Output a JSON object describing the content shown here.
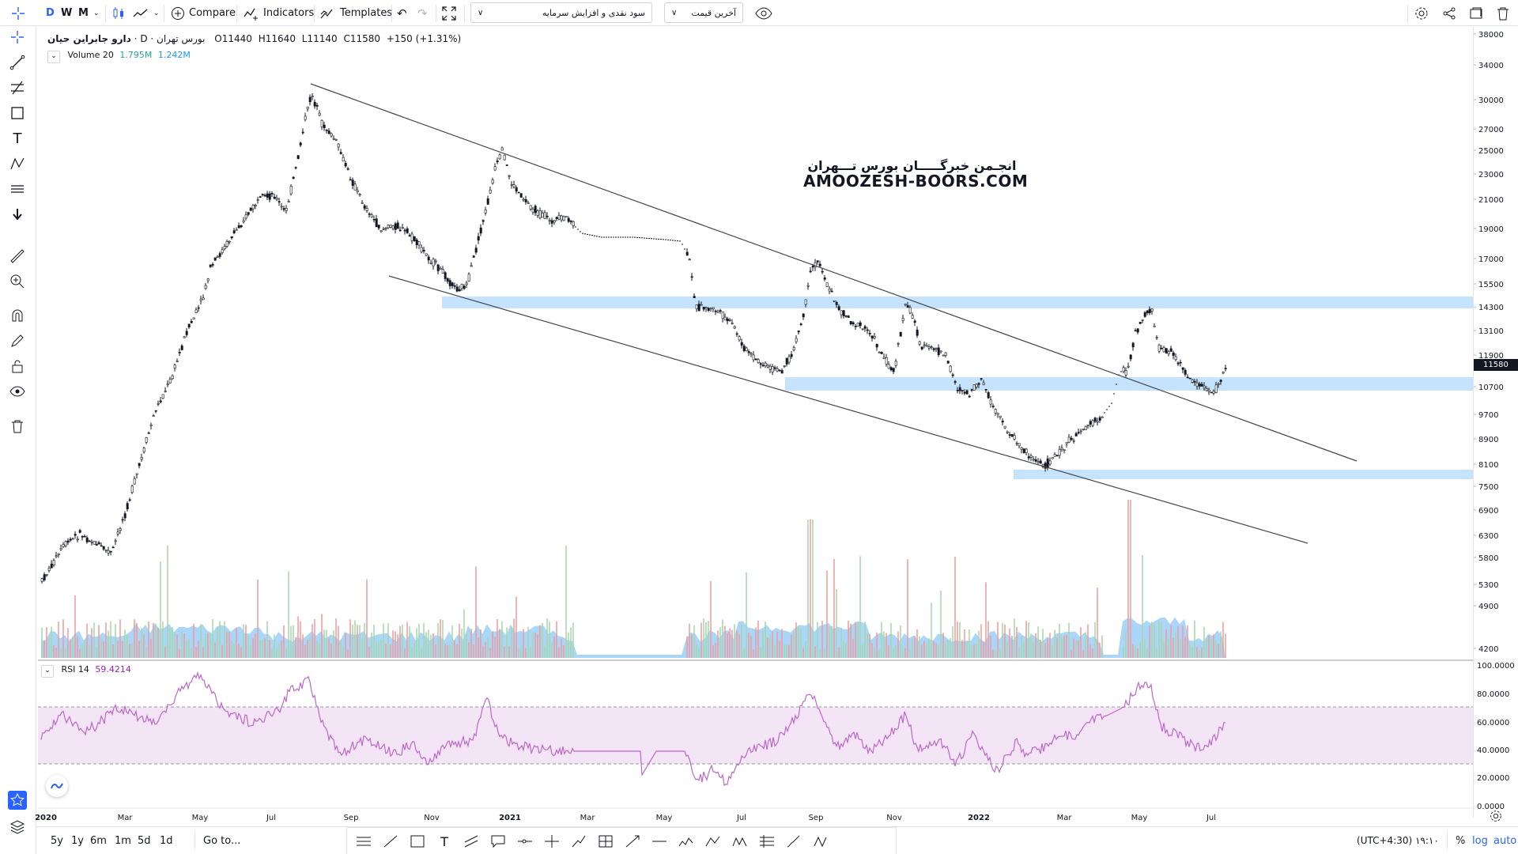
{
  "topbar": {
    "intervals": [
      "D",
      "W",
      "M"
    ],
    "compare_label": "Compare",
    "indicators_label": "Indicators",
    "templates_label": "Templates",
    "dropdown_adjustment": "سود نقدی و افزایش سرمایه",
    "dropdown_price": "آخرین قیمت"
  },
  "legend": {
    "symbol": "دارو جابراین حیان",
    "interval": "D",
    "exchange": "بورس تهران",
    "open": "O11440",
    "high": "H11640",
    "low": "L11140",
    "close": "C11580",
    "change": "+150 (+1.31%)",
    "volume_label": "Volume 20",
    "volume_val1": "1.795M",
    "volume_val2": "1.242M",
    "rsi_label": "RSI 14",
    "rsi_val": "59.4214"
  },
  "watermark": {
    "line1": "انجـمن خبرگـــــان بورس تـــهران",
    "line2": "AMOOZESH-BOORS.COM"
  },
  "price_axis": {
    "labels": [
      "38000",
      "34000",
      "30000",
      "27000",
      "25000",
      "23000",
      "21000",
      "19000",
      "17000",
      "15500",
      "14300",
      "13100",
      "11900",
      "10700",
      "9700",
      "8900",
      "8100",
      "7500",
      "6900",
      "6300",
      "5800",
      "5300",
      "4900",
      "4200"
    ],
    "current_price": "11580"
  },
  "rsi_axis": {
    "labels": [
      "100.0000",
      "80.0000",
      "60.0000",
      "40.0000",
      "20.0000",
      "0.0000"
    ]
  },
  "time_axis": {
    "labels": [
      "2020",
      "Mar",
      "May",
      "Jul",
      "Sep",
      "Nov",
      "2021",
      "Mar",
      "May",
      "Jul",
      "Sep",
      "Nov",
      "2022",
      "Mar",
      "May",
      "Jul"
    ]
  },
  "bottombar": {
    "ranges": [
      "5y",
      "1y",
      "6m",
      "1m",
      "5d",
      "1d"
    ],
    "goto_label": "Go to...",
    "time": "۱۹:۱۰ (UTC+4:30)",
    "percent_label": "%",
    "log_label": "log",
    "auto_label": "auto"
  },
  "colors": {
    "up": "#ffffff",
    "down": "#131722",
    "zone": "#bbdefb",
    "rsi": "#ba68c8",
    "rsi_band": "#f3e5f5",
    "vol_up": "#a5d6a7",
    "vol_down": "#ef9a9a",
    "vol_ma": "#64b5f6",
    "accent": "#2962ff"
  }
}
